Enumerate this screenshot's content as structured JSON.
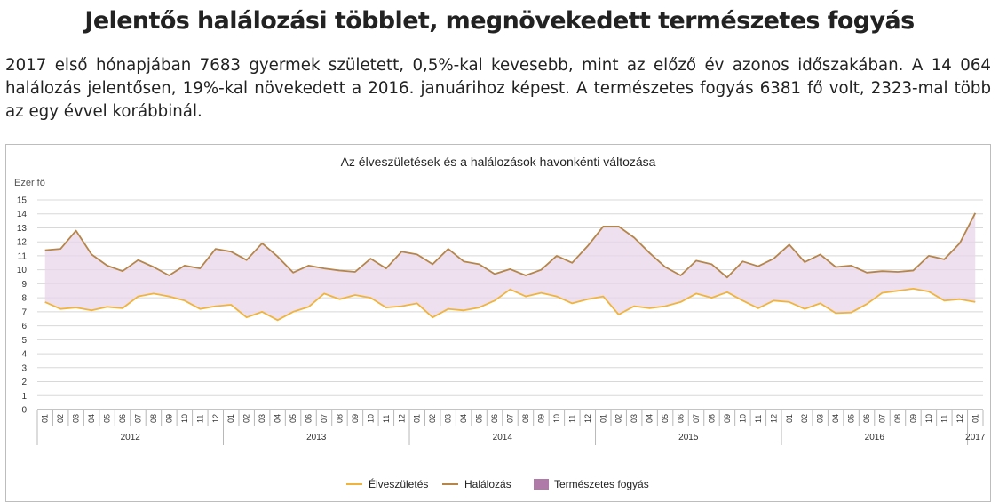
{
  "headline": "Jelentős halálozási többlet, megnövekedett természetes fogyás",
  "lead": "2017 első hónapjában 7683 gyermek született, 0,5%-kal kevesebb, mint az előző év azonos időszakában. A 14 064 halálozás jelentősen, 19%-kal növekedett a 2016. januárihoz képest. A természetes fogyás 6381 fő volt, 2323-mal több az egy évvel korábbinál.",
  "chart_data": {
    "type": "line",
    "title": "Az élveszületések és a halálozások havonkénti változása",
    "ylabel": "Ezer fő",
    "xlabel": "",
    "ylim": [
      0,
      15
    ],
    "yticks": [
      0,
      1,
      2,
      3,
      4,
      5,
      6,
      7,
      8,
      9,
      10,
      11,
      12,
      13,
      14,
      15
    ],
    "grid": true,
    "legend_position": "bottom",
    "months": [
      "01",
      "02",
      "03",
      "04",
      "05",
      "06",
      "07",
      "08",
      "09",
      "10",
      "11",
      "12",
      "01",
      "02",
      "03",
      "04",
      "05",
      "06",
      "07",
      "08",
      "09",
      "10",
      "11",
      "12",
      "01",
      "02",
      "03",
      "04",
      "05",
      "06",
      "07",
      "08",
      "09",
      "10",
      "11",
      "12",
      "01",
      "02",
      "03",
      "04",
      "05",
      "06",
      "07",
      "08",
      "09",
      "10",
      "11",
      "12",
      "01",
      "02",
      "03",
      "04",
      "05",
      "06",
      "07",
      "08",
      "09",
      "10",
      "11",
      "12",
      "01"
    ],
    "years": [
      {
        "label": "2012",
        "count": 12
      },
      {
        "label": "2013",
        "count": 12
      },
      {
        "label": "2014",
        "count": 12
      },
      {
        "label": "2015",
        "count": 12
      },
      {
        "label": "2016",
        "count": 12
      },
      {
        "label": "2017",
        "count": 1
      }
    ],
    "series": [
      {
        "name": "Élveszületés",
        "color": "#f0b43c",
        "values": [
          7.7,
          7.2,
          7.3,
          7.1,
          7.35,
          7.25,
          8.1,
          8.3,
          8.1,
          7.8,
          7.2,
          7.4,
          7.5,
          6.6,
          7.0,
          6.4,
          7.0,
          7.35,
          8.3,
          7.9,
          8.2,
          8.0,
          7.3,
          7.4,
          7.6,
          6.6,
          7.2,
          7.1,
          7.3,
          7.8,
          8.6,
          8.1,
          8.35,
          8.1,
          7.6,
          7.9,
          8.1,
          6.8,
          7.4,
          7.25,
          7.4,
          7.7,
          8.3,
          8.0,
          8.4,
          7.8,
          7.25,
          7.8,
          7.7,
          7.2,
          7.6,
          6.9,
          6.95,
          7.55,
          8.35,
          8.5,
          8.65,
          8.45,
          7.8,
          7.9,
          7.7
        ]
      },
      {
        "name": "Halálozás",
        "color": "#b5854a",
        "values": [
          11.4,
          11.5,
          12.8,
          11.1,
          10.3,
          9.9,
          10.7,
          10.2,
          9.6,
          10.3,
          10.1,
          11.5,
          11.3,
          10.7,
          11.9,
          10.95,
          9.8,
          10.3,
          10.1,
          9.95,
          9.85,
          10.8,
          10.1,
          11.3,
          11.1,
          10.4,
          11.5,
          10.6,
          10.4,
          9.7,
          10.05,
          9.6,
          10.0,
          11.0,
          10.5,
          11.7,
          13.1,
          13.1,
          12.3,
          11.2,
          10.2,
          9.6,
          10.65,
          10.4,
          9.45,
          10.6,
          10.25,
          10.8,
          11.8,
          10.55,
          11.1,
          10.2,
          10.3,
          9.8,
          9.9,
          9.85,
          9.95,
          11.0,
          10.75,
          11.9,
          14.06
        ]
      }
    ],
    "area": {
      "name": "Természetes fogyás",
      "color": "#e8d6e9",
      "legend_color": "#b07aa8"
    }
  }
}
